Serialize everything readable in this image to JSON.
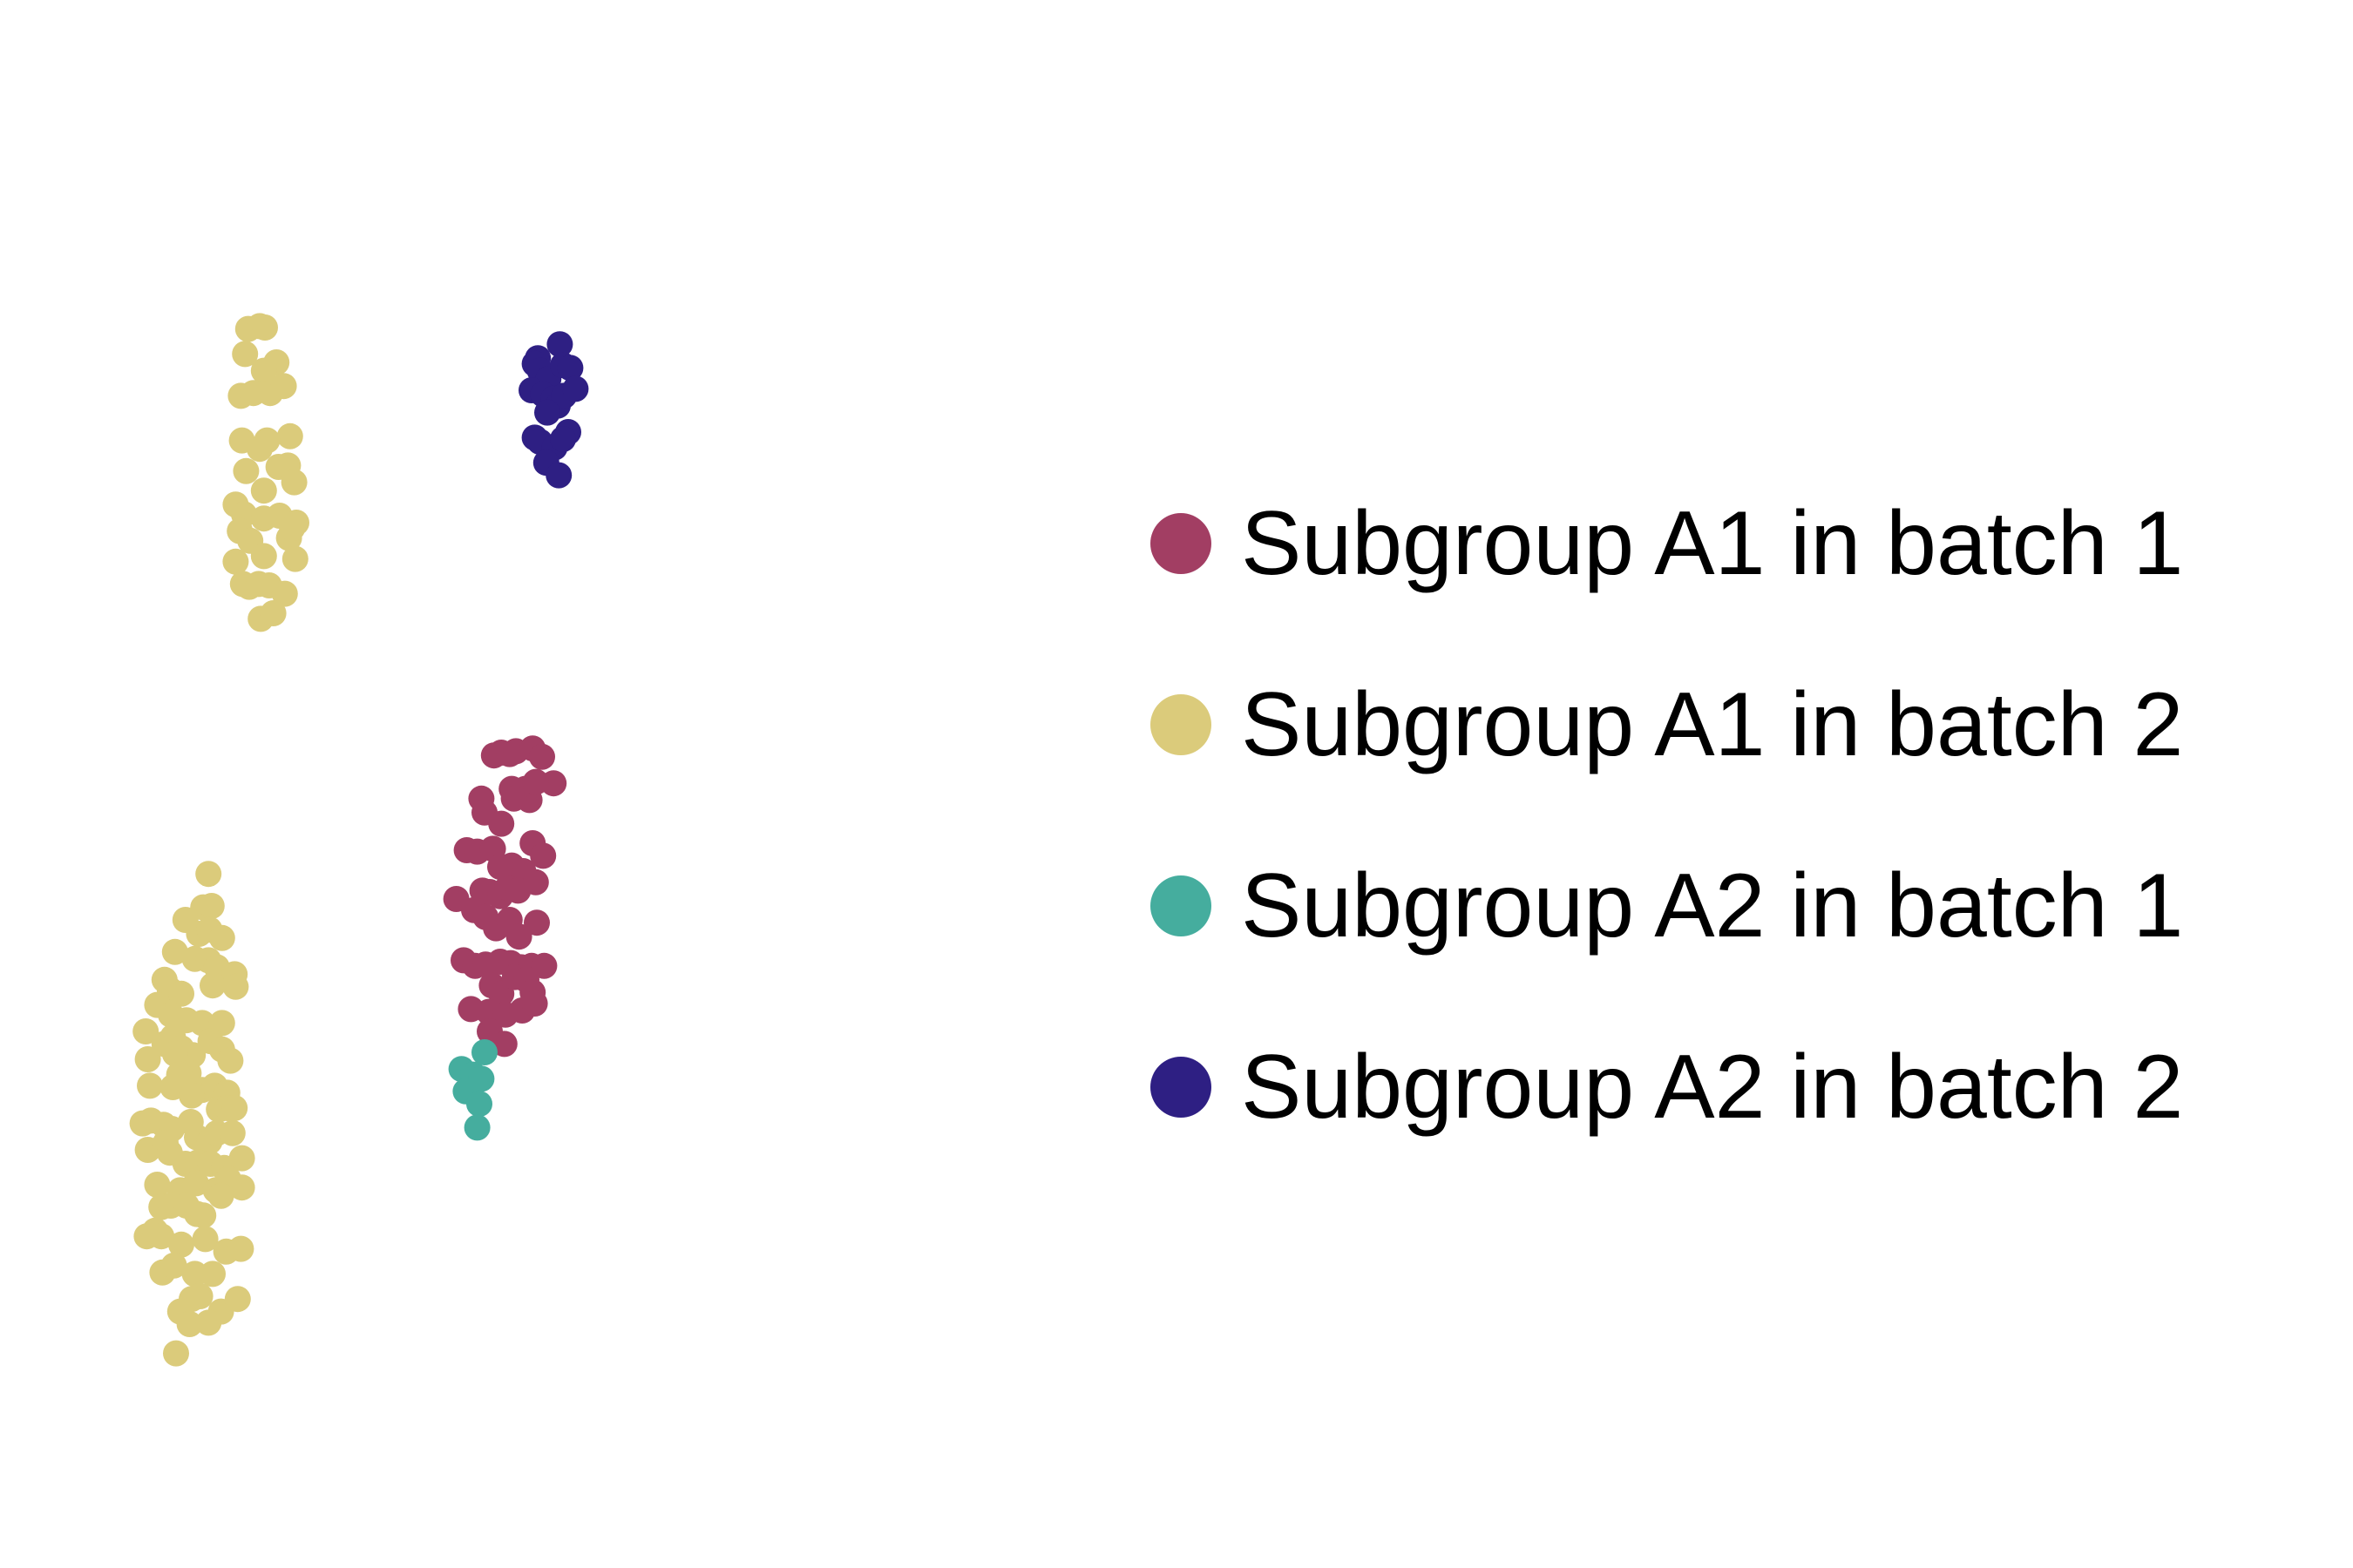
{
  "chart_data": {
    "type": "scatter",
    "title": "",
    "xlabel": "",
    "ylabel": "",
    "axes_visible": false,
    "grid": false,
    "legend_position": "right",
    "xlim": [
      0,
      100
    ],
    "ylim": [
      0,
      100
    ],
    "series": [
      {
        "name": "Subgroup A1 in batch 1",
        "color": "#A23E63",
        "points": [
          [
            38.9,
            53.3
          ],
          [
            39.6,
            53.5
          ],
          [
            40.4,
            53.4
          ],
          [
            41.0,
            53.6
          ],
          [
            42.6,
            53.8
          ],
          [
            43.5,
            53.2
          ],
          [
            44.6,
            51.3
          ],
          [
            40.6,
            50.9
          ],
          [
            41.9,
            50.9
          ],
          [
            42.3,
            50.1
          ],
          [
            42.9,
            51.4
          ],
          [
            37.7,
            50.2
          ],
          [
            38.0,
            49.2
          ],
          [
            39.6,
            48.4
          ],
          [
            40.8,
            50.2
          ],
          [
            36.3,
            46.5
          ],
          [
            37.3,
            46.4
          ],
          [
            38.8,
            46.6
          ],
          [
            40.6,
            45.4
          ],
          [
            41.7,
            45.0
          ],
          [
            42.6,
            47.0
          ],
          [
            43.6,
            46.1
          ],
          [
            39.5,
            45.3
          ],
          [
            37.8,
            43.6
          ],
          [
            38.5,
            43.5
          ],
          [
            39.5,
            43.2
          ],
          [
            40.2,
            43.8
          ],
          [
            41.2,
            43.6
          ],
          [
            42.9,
            44.2
          ],
          [
            35.3,
            43.0
          ],
          [
            37.0,
            42.2
          ],
          [
            38.1,
            41.7
          ],
          [
            39.1,
            40.9
          ],
          [
            40.4,
            41.5
          ],
          [
            41.3,
            40.3
          ],
          [
            43.0,
            41.3
          ],
          [
            36.0,
            38.6
          ],
          [
            37.1,
            38.2
          ],
          [
            38.1,
            38.3
          ],
          [
            39.5,
            38.5
          ],
          [
            40.5,
            38.4
          ],
          [
            41.5,
            38.1
          ],
          [
            42.5,
            38.2
          ],
          [
            43.7,
            38.2
          ],
          [
            38.7,
            36.8
          ],
          [
            39.6,
            36.2
          ],
          [
            40.9,
            37.4
          ],
          [
            42.0,
            37.2
          ],
          [
            42.6,
            36.3
          ],
          [
            36.7,
            35.1
          ],
          [
            38.4,
            34.9
          ],
          [
            40.0,
            34.7
          ],
          [
            41.6,
            35.0
          ],
          [
            42.8,
            35.5
          ],
          [
            38.5,
            33.5
          ],
          [
            39.9,
            32.6
          ]
        ]
      },
      {
        "name": "Subgroup A1 in batch 2",
        "color": "#DBCB7B",
        "points": [
          [
            15.4,
            83.9
          ],
          [
            16.5,
            84.1
          ],
          [
            17.0,
            84.0
          ],
          [
            15.1,
            82.1
          ],
          [
            18.1,
            81.5
          ],
          [
            16.9,
            80.9
          ],
          [
            14.7,
            79.1
          ],
          [
            15.9,
            79.3
          ],
          [
            17.5,
            79.3
          ],
          [
            18.8,
            79.8
          ],
          [
            19.4,
            76.2
          ],
          [
            14.8,
            75.9
          ],
          [
            17.2,
            75.9
          ],
          [
            16.5,
            75.3
          ],
          [
            15.2,
            73.7
          ],
          [
            18.3,
            74.0
          ],
          [
            19.2,
            74.1
          ],
          [
            19.8,
            72.9
          ],
          [
            16.9,
            72.3
          ],
          [
            14.2,
            71.3
          ],
          [
            15.0,
            70.6
          ],
          [
            16.9,
            70.3
          ],
          [
            18.4,
            70.5
          ],
          [
            20.0,
            70.0
          ],
          [
            14.6,
            69.4
          ],
          [
            15.6,
            68.7
          ],
          [
            19.3,
            68.9
          ],
          [
            19.6,
            69.6
          ],
          [
            14.2,
            67.2
          ],
          [
            16.9,
            67.6
          ],
          [
            19.9,
            67.4
          ],
          [
            14.9,
            65.6
          ],
          [
            15.5,
            65.4
          ],
          [
            16.4,
            65.6
          ],
          [
            17.4,
            65.5
          ],
          [
            18.9,
            64.9
          ],
          [
            16.6,
            63.1
          ],
          [
            17.8,
            63.5
          ],
          [
            11.6,
            44.8
          ],
          [
            11.1,
            42.4
          ],
          [
            11.9,
            42.5
          ],
          [
            9.4,
            41.5
          ],
          [
            10.7,
            40.5
          ],
          [
            11.7,
            40.8
          ],
          [
            12.9,
            40.2
          ],
          [
            8.4,
            39.2
          ],
          [
            10.3,
            38.7
          ],
          [
            11.6,
            38.6
          ],
          [
            12.4,
            38.1
          ],
          [
            14.1,
            37.6
          ],
          [
            7.4,
            37.2
          ],
          [
            7.9,
            36.5
          ],
          [
            9.0,
            36.2
          ],
          [
            12.0,
            36.8
          ],
          [
            14.2,
            36.7
          ],
          [
            6.7,
            35.4
          ],
          [
            8.0,
            34.7
          ],
          [
            9.5,
            34.3
          ],
          [
            11.0,
            34.1
          ],
          [
            12.9,
            34.1
          ],
          [
            5.6,
            33.5
          ],
          [
            8.2,
            33.1
          ],
          [
            9.0,
            32.3
          ],
          [
            10.1,
            31.8
          ],
          [
            11.8,
            32.8
          ],
          [
            12.9,
            32.2
          ],
          [
            13.7,
            31.4
          ],
          [
            5.8,
            31.5
          ],
          [
            7.4,
            32.6
          ],
          [
            8.4,
            31.9
          ],
          [
            9.7,
            30.5
          ],
          [
            11.0,
            29.3
          ],
          [
            12.2,
            29.6
          ],
          [
            13.4,
            29.1
          ],
          [
            6.0,
            29.6
          ],
          [
            8.2,
            29.5
          ],
          [
            8.8,
            30.4
          ],
          [
            10.0,
            28.9
          ],
          [
            12.6,
            27.9
          ],
          [
            13.4,
            28.0
          ],
          [
            14.1,
            28.0
          ],
          [
            5.3,
            26.9
          ],
          [
            6.1,
            27.1
          ],
          [
            7.3,
            26.8
          ],
          [
            8.1,
            26.5
          ],
          [
            9.9,
            27.0
          ],
          [
            10.5,
            25.9
          ],
          [
            11.7,
            25.6
          ],
          [
            12.4,
            26.2
          ],
          [
            13.9,
            26.2
          ],
          [
            5.8,
            25.0
          ],
          [
            7.5,
            25.5
          ],
          [
            7.9,
            24.8
          ],
          [
            9.4,
            24.0
          ],
          [
            10.6,
            24.1
          ],
          [
            11.8,
            24.0
          ],
          [
            13.1,
            23.7
          ],
          [
            14.8,
            24.4
          ],
          [
            6.7,
            22.5
          ],
          [
            8.9,
            22.1
          ],
          [
            10.4,
            22.6
          ],
          [
            12.3,
            22.1
          ],
          [
            13.5,
            22.9
          ],
          [
            14.8,
            22.3
          ],
          [
            7.1,
            20.9
          ],
          [
            8.0,
            21.0
          ],
          [
            9.5,
            21.0
          ],
          [
            10.5,
            20.4
          ],
          [
            11.1,
            20.3
          ],
          [
            12.8,
            21.7
          ],
          [
            5.7,
            18.8
          ],
          [
            6.5,
            19.2
          ],
          [
            7.1,
            18.8
          ],
          [
            9.0,
            18.2
          ],
          [
            11.3,
            18.6
          ],
          [
            13.3,
            17.7
          ],
          [
            14.7,
            17.9
          ],
          [
            7.2,
            16.2
          ],
          [
            8.3,
            16.7
          ],
          [
            10.3,
            16.1
          ],
          [
            12.0,
            16.1
          ],
          [
            10.0,
            14.3
          ],
          [
            10.8,
            14.5
          ],
          [
            8.9,
            13.4
          ],
          [
            9.8,
            12.5
          ],
          [
            12.8,
            13.4
          ],
          [
            14.4,
            14.3
          ],
          [
            8.5,
            10.4
          ],
          [
            11.6,
            12.6
          ]
        ]
      },
      {
        "name": "Subgroup A2 in batch 1",
        "color": "#45AD9E",
        "points": [
          [
            35.8,
            30.8
          ],
          [
            36.9,
            30.4
          ],
          [
            37.7,
            30.1
          ],
          [
            38.0,
            32.0
          ],
          [
            36.2,
            29.2
          ],
          [
            37.5,
            28.3
          ],
          [
            37.3,
            26.6
          ]
        ]
      },
      {
        "name": "Subgroup A2 in batch 2",
        "color": "#2E1F83",
        "points": [
          [
            45.2,
            82.8
          ],
          [
            43.1,
            81.8
          ],
          [
            42.8,
            81.4
          ],
          [
            43.3,
            80.9
          ],
          [
            44.1,
            80.3
          ],
          [
            45.5,
            81.3
          ],
          [
            46.2,
            81.1
          ],
          [
            42.5,
            79.5
          ],
          [
            43.6,
            79.2
          ],
          [
            44.6,
            78.9
          ],
          [
            45.0,
            78.4
          ],
          [
            45.6,
            79.1
          ],
          [
            46.7,
            79.6
          ],
          [
            44.0,
            77.9
          ],
          [
            42.8,
            76.1
          ],
          [
            43.3,
            75.8
          ],
          [
            44.7,
            75.4
          ],
          [
            46.0,
            76.5
          ],
          [
            45.5,
            76.0
          ],
          [
            43.9,
            74.3
          ],
          [
            45.1,
            73.4
          ]
        ]
      }
    ]
  }
}
